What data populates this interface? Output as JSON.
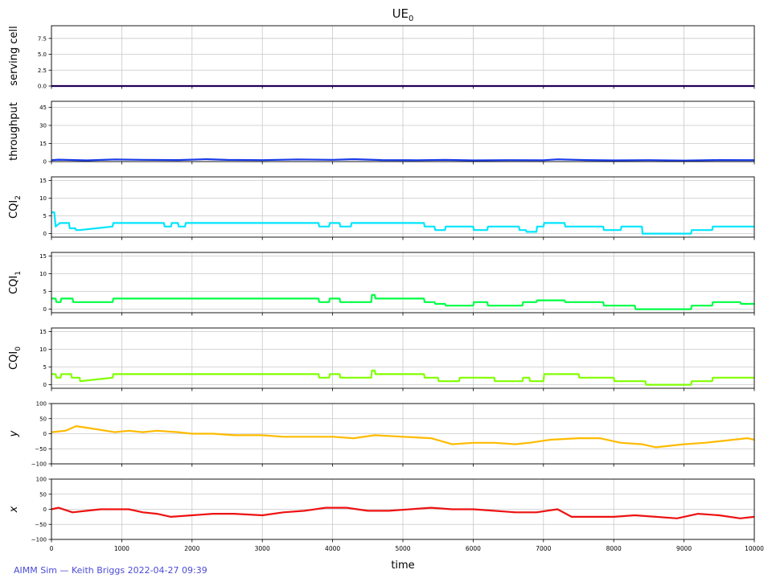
{
  "figure": {
    "title_main": "UE",
    "title_sub": "0",
    "footer": "AIMM Sim — Keith Briggs 2022-04-27 09:39"
  },
  "chart_data": [
    {
      "type": "line",
      "ylabel": "serving cell",
      "ylabel_sub": "",
      "ylabel_italic": false,
      "color": "#3a0096",
      "ylim": [
        0,
        9.5
      ],
      "yticks": [
        0,
        2.5,
        5,
        7.5
      ],
      "ytick_labels": [
        "0.0",
        "2.5",
        "5.0",
        "7.5"
      ],
      "xlim": [
        0,
        10000
      ],
      "x": [
        0,
        10000
      ],
      "values": [
        0,
        0
      ]
    },
    {
      "type": "line",
      "ylabel": "throughput",
      "ylabel_sub": "",
      "ylabel_italic": false,
      "color": "#1a3be8",
      "ylim": [
        0,
        50
      ],
      "yticks": [
        0,
        15,
        30,
        45
      ],
      "ytick_labels": [
        "0",
        "15",
        "30",
        "45"
      ],
      "xlim": [
        0,
        10000
      ],
      "x": [
        0,
        100,
        500,
        900,
        1300,
        1800,
        2200,
        2500,
        3000,
        3500,
        4000,
        4300,
        4700,
        5200,
        5600,
        6000,
        6500,
        7000,
        7200,
        7600,
        8000,
        8500,
        9000,
        9500,
        10000
      ],
      "values": [
        1.2,
        1.6,
        1.0,
        1.8,
        1.5,
        1.3,
        2.0,
        1.4,
        1.2,
        1.8,
        1.5,
        2.0,
        1.3,
        1.1,
        1.4,
        1.0,
        1.2,
        1.1,
        1.9,
        1.3,
        1.0,
        1.2,
        0.9,
        1.3,
        1.2
      ]
    },
    {
      "type": "line",
      "ylabel": "CQI",
      "ylabel_sub": "2",
      "ylabel_italic": false,
      "color": "#00e5ff",
      "ylim": [
        -1,
        16
      ],
      "yticks": [
        0,
        5,
        10,
        15
      ],
      "ytick_labels": [
        "0",
        "5",
        "10",
        "15"
      ],
      "xlim": [
        0,
        10000
      ],
      "x": [
        0,
        40,
        60,
        120,
        250,
        260,
        340,
        350,
        400,
        870,
        880,
        1600,
        1610,
        1700,
        1710,
        1800,
        1810,
        1900,
        1910,
        3800,
        3810,
        3950,
        3960,
        4100,
        4110,
        4260,
        4270,
        5300,
        5310,
        5450,
        5460,
        5600,
        5610,
        6000,
        6010,
        6200,
        6210,
        6650,
        6660,
        6750,
        6760,
        6900,
        6910,
        7000,
        7010,
        7300,
        7310,
        7850,
        7860,
        8100,
        8110,
        8400,
        8410,
        9100,
        9110,
        9400,
        9410,
        10000
      ],
      "values": [
        6,
        6,
        2,
        3,
        3,
        1.5,
        1.5,
        1,
        1,
        2,
        3,
        3,
        2,
        2,
        3,
        3,
        2,
        2,
        3,
        3,
        2,
        2,
        3,
        3,
        2,
        2,
        3,
        3,
        2,
        2,
        1,
        1,
        2,
        2,
        1,
        1,
        2,
        2,
        1,
        1,
        0.5,
        0.5,
        2,
        2,
        3,
        3,
        2,
        2,
        1,
        1,
        2,
        2,
        0,
        0,
        1,
        1,
        2,
        2
      ]
    },
    {
      "type": "line",
      "ylabel": "CQI",
      "ylabel_sub": "1",
      "ylabel_italic": false,
      "color": "#00ff44",
      "ylim": [
        -1,
        16
      ],
      "yticks": [
        0,
        5,
        10,
        15
      ],
      "ytick_labels": [
        "0",
        "5",
        "10",
        "15"
      ],
      "xlim": [
        0,
        10000
      ],
      "x": [
        0,
        60,
        70,
        130,
        140,
        300,
        310,
        870,
        880,
        3800,
        3810,
        3950,
        3960,
        4100,
        4110,
        4550,
        4560,
        4600,
        4610,
        5300,
        5310,
        5450,
        5460,
        5600,
        5610,
        6000,
        6010,
        6200,
        6210,
        6700,
        6710,
        6900,
        6910,
        7300,
        7310,
        7850,
        7860,
        8100,
        8110,
        8300,
        8310,
        9100,
        9110,
        9400,
        9410,
        9800,
        9810,
        10000
      ],
      "values": [
        3,
        3,
        2,
        2,
        3,
        3,
        2,
        2,
        3,
        3,
        2,
        2,
        3,
        3,
        2,
        2,
        4,
        4,
        3,
        3,
        2,
        2,
        1.5,
        1.5,
        1,
        1,
        2,
        2,
        1,
        1,
        2,
        2,
        2.5,
        2.5,
        2,
        2,
        1,
        1,
        1,
        1,
        0,
        0,
        1,
        1,
        2,
        2,
        1.5,
        1.5
      ]
    },
    {
      "type": "line",
      "ylabel": "CQI",
      "ylabel_sub": "0",
      "ylabel_italic": false,
      "color": "#80ff00",
      "ylim": [
        -1,
        16
      ],
      "yticks": [
        0,
        5,
        10,
        15
      ],
      "ytick_labels": [
        "0",
        "5",
        "10",
        "15"
      ],
      "xlim": [
        0,
        10000
      ],
      "x": [
        0,
        60,
        70,
        130,
        140,
        280,
        290,
        400,
        410,
        870,
        880,
        3800,
        3810,
        3950,
        3960,
        4100,
        4110,
        4550,
        4560,
        4600,
        4610,
        5300,
        5310,
        5500,
        5510,
        5800,
        5810,
        6300,
        6310,
        6700,
        6710,
        6800,
        6810,
        7000,
        7010,
        7500,
        7510,
        8000,
        8010,
        8450,
        8460,
        9100,
        9110,
        9400,
        9410,
        10000
      ],
      "values": [
        3,
        3,
        2,
        2,
        3,
        3,
        2,
        2,
        1,
        2,
        3,
        3,
        2,
        2,
        3,
        3,
        2,
        2,
        4,
        4,
        3,
        3,
        2,
        2,
        1,
        1,
        2,
        2,
        1,
        1,
        2,
        2,
        1,
        1,
        3,
        3,
        2,
        2,
        1,
        1,
        0,
        0,
        1,
        1,
        2,
        2
      ]
    },
    {
      "type": "line",
      "ylabel": "y",
      "ylabel_sub": "",
      "ylabel_italic": true,
      "color": "#ffbb00",
      "ylim": [
        -100,
        100
      ],
      "yticks": [
        -100,
        -50,
        0,
        50,
        100
      ],
      "ytick_labels": [
        "−100",
        "−50",
        "0",
        "50",
        "100"
      ],
      "xlim": [
        0,
        10000
      ],
      "x": [
        0,
        200,
        350,
        500,
        900,
        1100,
        1300,
        1500,
        1800,
        2000,
        2300,
        2600,
        3000,
        3300,
        3700,
        4000,
        4300,
        4600,
        5000,
        5400,
        5700,
        6000,
        6300,
        6600,
        6800,
        7100,
        7500,
        7800,
        8100,
        8400,
        8600,
        9000,
        9300,
        9700,
        9900,
        10000
      ],
      "values": [
        5,
        10,
        25,
        20,
        5,
        10,
        5,
        10,
        5,
        0,
        0,
        -5,
        -5,
        -10,
        -10,
        -10,
        -15,
        -5,
        -10,
        -15,
        -35,
        -30,
        -30,
        -35,
        -30,
        -20,
        -15,
        -15,
        -30,
        -35,
        -45,
        -35,
        -30,
        -20,
        -15,
        -20
      ]
    },
    {
      "type": "line",
      "ylabel": "x",
      "ylabel_sub": "",
      "ylabel_italic": true,
      "color": "#ee1111",
      "ylim": [
        -100,
        100
      ],
      "yticks": [
        -100,
        -50,
        0,
        50,
        100
      ],
      "ytick_labels": [
        "−100",
        "−50",
        "0",
        "50",
        "100"
      ],
      "xlim": [
        0,
        10000
      ],
      "x": [
        0,
        100,
        300,
        500,
        700,
        900,
        1100,
        1300,
        1500,
        1700,
        2000,
        2300,
        2600,
        3000,
        3300,
        3600,
        3900,
        4200,
        4500,
        4800,
        5100,
        5400,
        5700,
        6000,
        6300,
        6600,
        6900,
        7200,
        7400,
        7700,
        8000,
        8300,
        8600,
        8900,
        9200,
        9500,
        9800,
        10000
      ],
      "values": [
        0,
        5,
        -10,
        -5,
        0,
        0,
        0,
        -10,
        -15,
        -25,
        -20,
        -15,
        -15,
        -20,
        -10,
        -5,
        5,
        5,
        -5,
        -5,
        0,
        5,
        0,
        0,
        -5,
        -10,
        -10,
        0,
        -25,
        -25,
        -25,
        -20,
        -25,
        -30,
        -15,
        -20,
        -30,
        -25
      ]
    }
  ],
  "shared_axis": {
    "xlabel": "time",
    "xticks": [
      0,
      1000,
      2000,
      3000,
      4000,
      5000,
      6000,
      7000,
      8000,
      9000,
      10000
    ],
    "xtick_labels": [
      "0",
      "1000",
      "2000",
      "3000",
      "4000",
      "5000",
      "6000",
      "7000",
      "8000",
      "9000",
      "10000"
    ]
  }
}
